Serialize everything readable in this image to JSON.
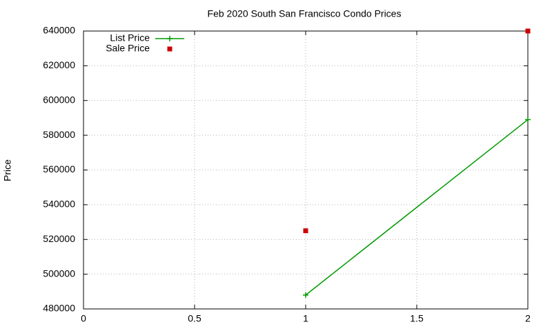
{
  "chart_data": {
    "type": "line",
    "title": "Feb 2020 South San Francisco Condo Prices",
    "y_label": "Price",
    "series": [
      {
        "name": "List Price",
        "color": "#009900",
        "style": "linespoints",
        "x": [
          1,
          2
        ],
        "values": [
          488000,
          589000
        ]
      },
      {
        "name": "Sale Price",
        "color": "#cc0000",
        "style": "points",
        "x": [
          1,
          2
        ],
        "values": [
          525000,
          640000
        ]
      }
    ],
    "xlim": [
      0,
      2
    ],
    "xticks": [
      0,
      0.5,
      1,
      1.5,
      2
    ],
    "ylim": [
      480000,
      640000
    ],
    "yticks": [
      480000,
      500000,
      520000,
      540000,
      560000,
      580000,
      600000,
      620000,
      640000
    ],
    "grid": true,
    "legend": "top-left"
  }
}
